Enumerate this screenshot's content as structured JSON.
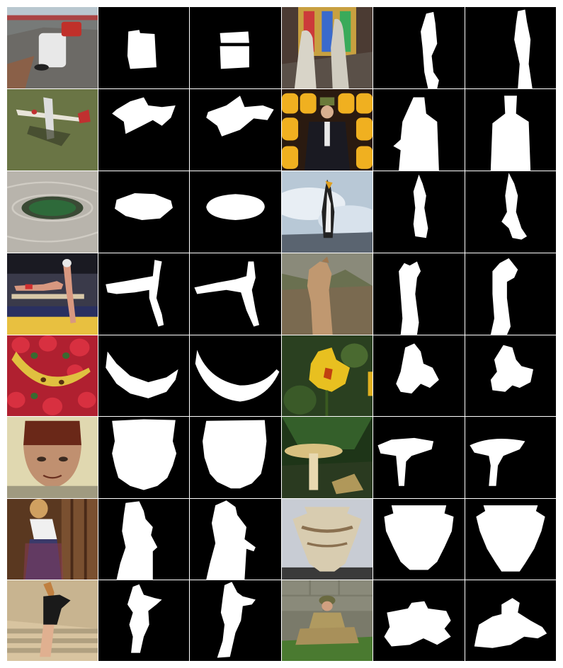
{
  "figure": {
    "layout": {
      "rows": 8,
      "columns": 6
    },
    "column_kinds": [
      "photo",
      "mask-result",
      "mask-ground-truth",
      "photo",
      "mask-result",
      "mask-ground-truth"
    ],
    "rows": [
      {
        "left": "race-cars-on-track",
        "right": "two-statues-stained-glass"
      },
      {
        "left": "aircraft-on-grass",
        "right": "man-with-lanterns"
      },
      {
        "left": "circular-garden-bed",
        "right": "penguin-on-rock"
      },
      {
        "left": "gymnast-on-beam",
        "right": "llama-in-ruins"
      },
      {
        "left": "banana-on-roses",
        "right": "yellow-flower"
      },
      {
        "left": "old-man-with-hat",
        "right": "mushroom"
      },
      {
        "left": "woman-in-doorway",
        "right": "ancient-vase"
      },
      {
        "left": "woman-on-steps",
        "right": "seated-soldier"
      }
    ]
  }
}
